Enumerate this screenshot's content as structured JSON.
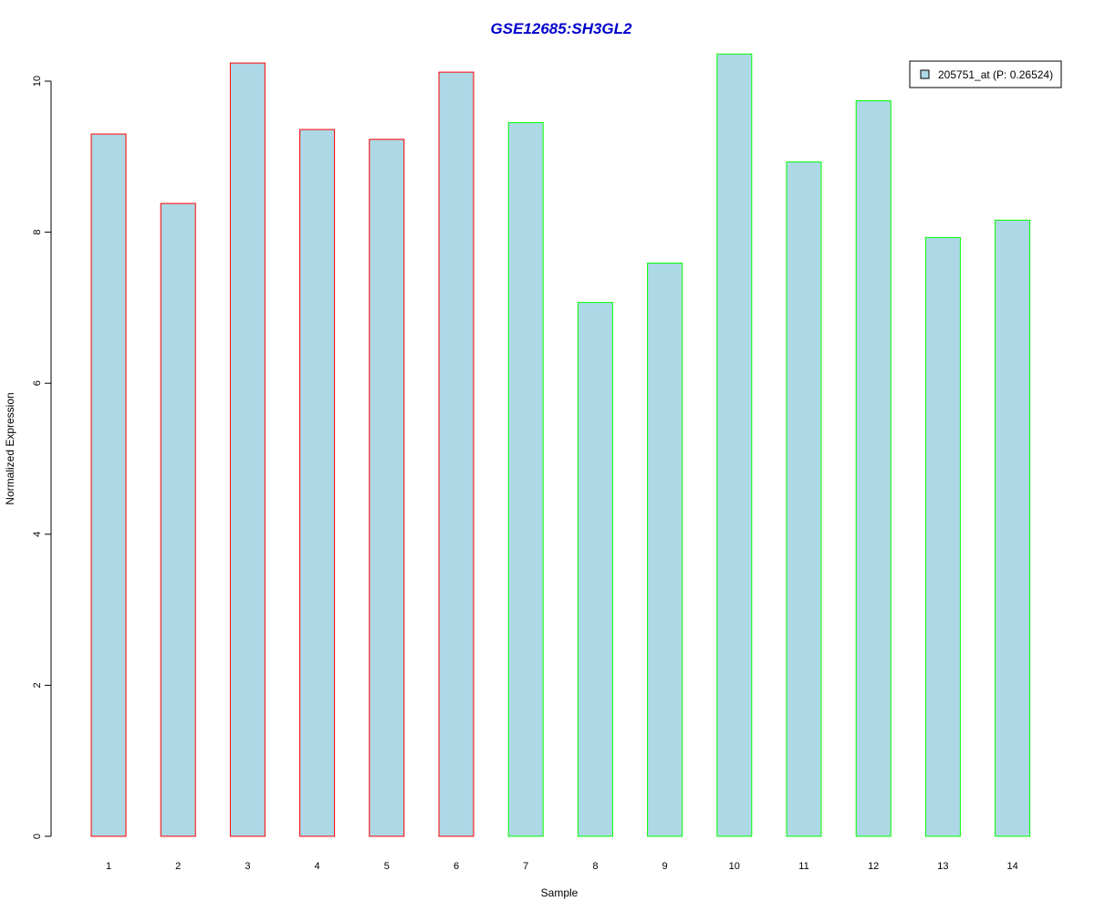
{
  "chart_data": {
    "type": "bar",
    "title": "GSE12685:SH3GL2",
    "title_color": "#0000CC",
    "xlabel": "Sample",
    "ylabel": "Normalized Expression",
    "ylim": [
      0,
      10.4
    ],
    "yticks": [
      0,
      2,
      4,
      6,
      8,
      10
    ],
    "grid": false,
    "legend_position": "top-right",
    "categories": [
      "1",
      "2",
      "3",
      "4",
      "5",
      "6",
      "7",
      "8",
      "9",
      "10",
      "11",
      "12",
      "13",
      "14"
    ],
    "series": [
      {
        "name": "205751_at (P: 0.26524)",
        "fill": "#ADD8E6",
        "values": [
          9.3,
          8.38,
          10.24,
          9.36,
          9.23,
          10.12,
          9.45,
          7.07,
          7.59,
          10.36,
          8.93,
          9.74,
          7.93,
          8.16
        ]
      }
    ],
    "bar_border_colors": [
      "#FF0000",
      "#FF0000",
      "#FF0000",
      "#FF0000",
      "#FF0000",
      "#FF0000",
      "#00FF00",
      "#00FF00",
      "#00FF00",
      "#00FF00",
      "#00FF00",
      "#00FF00",
      "#00FF00",
      "#00FF00"
    ]
  }
}
